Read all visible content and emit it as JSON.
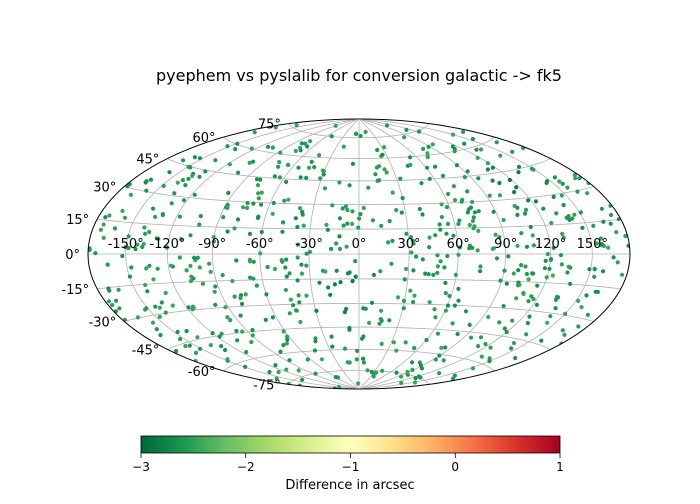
{
  "chart_data": {
    "type": "scatter",
    "projection": "hammer",
    "title": "pyephem vs pyslalib for conversion galactic -> fk5",
    "xlabel": "",
    "ylabel": "",
    "grid": true,
    "lon_ticks": [
      "-150°",
      "-120°",
      "-90°",
      "-60°",
      "-30°",
      "0°",
      "30°",
      "60°",
      "90°",
      "120°",
      "150°"
    ],
    "lat_ticks": [
      "-75°",
      "-60°",
      "-45°",
      "-30°",
      "-15°",
      "0°",
      "15°",
      "30°",
      "45°",
      "60°",
      "75°"
    ],
    "color_scale": {
      "cmap": "RdYlGn_r",
      "range": [
        -3,
        1
      ],
      "ticks": [
        "-3",
        "-2",
        "-1",
        "0",
        "1"
      ],
      "label": "Difference in arcsec",
      "colors": [
        "#006837",
        "#1a9850",
        "#66bd63",
        "#a6d96a",
        "#d9ef8b",
        "#ffffbf",
        "#fee08b",
        "#fdae61",
        "#f46d43",
        "#d73027",
        "#a50026"
      ]
    },
    "points": {
      "count": 700,
      "lon_range": [
        -180,
        180
      ],
      "lat_range": [
        -90,
        90
      ],
      "typical_value": -2.55,
      "notable_clusters": [
        {
          "lon": 125,
          "lat": 38,
          "value": -2.95
        },
        {
          "lon": -5,
          "lat": -20,
          "value": -2.9
        },
        {
          "lon": -20,
          "lat": -38,
          "value": -2.9
        }
      ]
    }
  }
}
